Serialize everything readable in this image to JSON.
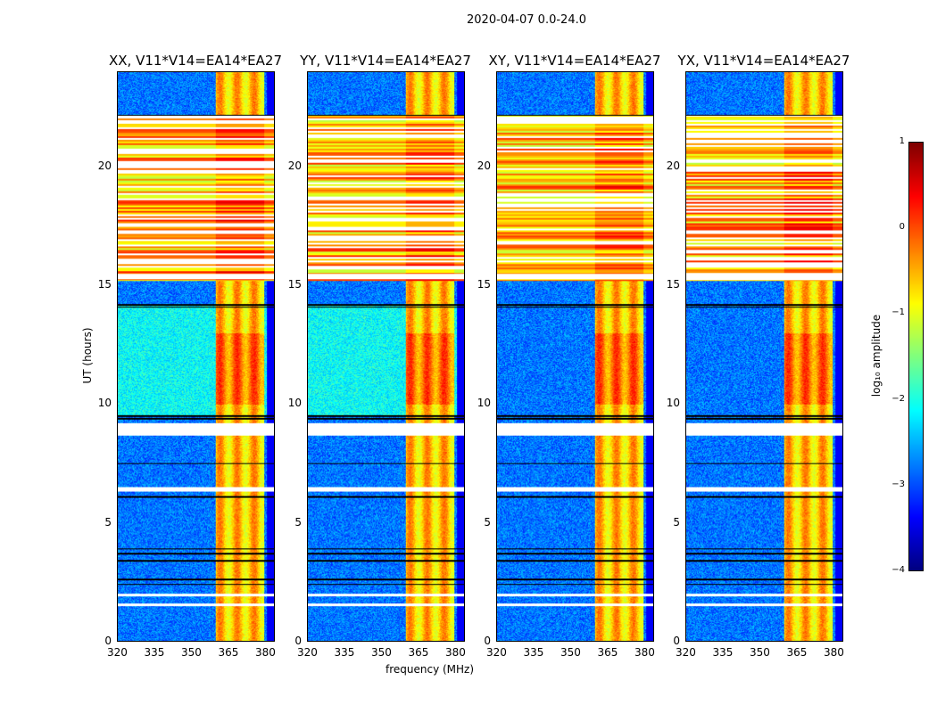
{
  "chart_data": {
    "type": "heatmap",
    "title": "2020-04-07 0.0-24.0",
    "xlabel": "frequency (MHz)",
    "ylabel": "UT (hours)",
    "xlim": [
      320,
      384
    ],
    "ylim": [
      0,
      24
    ],
    "xticks": [
      "320",
      "335",
      "350",
      "365",
      "380"
    ],
    "yticks": [
      "0",
      "5",
      "10",
      "15",
      "20"
    ],
    "panels": [
      {
        "title": "XX, V11*V14=EA14*EA27"
      },
      {
        "title": "YY, V11*V14=EA14*EA27"
      },
      {
        "title": "XY, V11*V14=EA14*EA27"
      },
      {
        "title": "YX, V11*V14=EA14*EA27"
      }
    ],
    "colorbar": {
      "label": "log₁₀ amplitude",
      "range": [
        -4,
        1
      ],
      "ticks": [
        "1",
        "0",
        "−1",
        "−2",
        "−3",
        "−4"
      ],
      "colormap": "jet"
    },
    "structure": {
      "background_level": -2.8,
      "rfi_band_mhz": [
        360,
        380
      ],
      "rfi_band_level": -0.6,
      "bright_segment_hours": [
        15.2,
        22.2
      ],
      "bright_segment_level": 0.0,
      "flagged_hours": [
        [
          8.7,
          9.2
        ],
        [
          6.3,
          6.5
        ],
        [
          1.9,
          2.0
        ],
        [
          1.5,
          1.6
        ],
        [
          15.3,
          15.5
        ]
      ],
      "black_lines_hours": [
        22.2,
        14.2,
        14.1,
        9.5,
        9.4,
        7.5,
        6.1,
        3.9,
        3.7,
        3.4,
        2.6,
        2.4
      ]
    }
  }
}
